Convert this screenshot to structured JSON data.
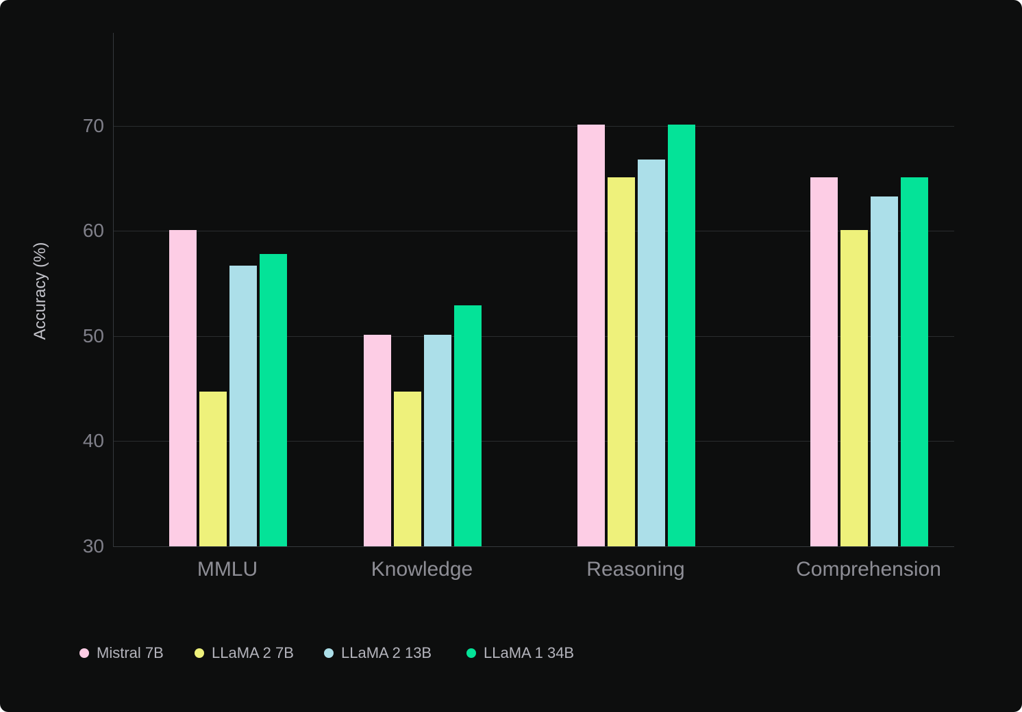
{
  "chart_data": {
    "type": "bar",
    "title": "",
    "xlabel": "",
    "ylabel": "Accuracy (%)",
    "categories": [
      "MMLU",
      "Knowledge",
      "Reasoning",
      "Comprehension"
    ],
    "series": [
      {
        "name": "Mistral 7B",
        "color": "#FDCDE5",
        "values": [
          60.1,
          50.1,
          70.1,
          65.1
        ]
      },
      {
        "name": "LLaMA 2 7B",
        "color": "#EEF17B",
        "values": [
          44.7,
          44.7,
          65.1,
          60.1
        ]
      },
      {
        "name": "LLaMA 2 13B",
        "color": "#ACDFE9",
        "values": [
          56.7,
          50.1,
          66.8,
          63.3
        ]
      },
      {
        "name": "LLaMA 1 34B",
        "color": "#04E398",
        "values": [
          57.8,
          52.9,
          70.1,
          65.1
        ]
      }
    ],
    "ylim": [
      30,
      79
    ],
    "yticks": [
      30,
      40,
      50,
      60,
      70
    ],
    "grid": true,
    "legend_position": "bottom-left"
  },
  "colors": {
    "background": "#0D0E0E",
    "gridline": "#2A2D2F",
    "axis_line": "#35393D",
    "tick_label": "#80808A",
    "category_label": "#8E8E96",
    "legend_label": "#B4B4BC",
    "axis_title": "#C3C3CA"
  }
}
